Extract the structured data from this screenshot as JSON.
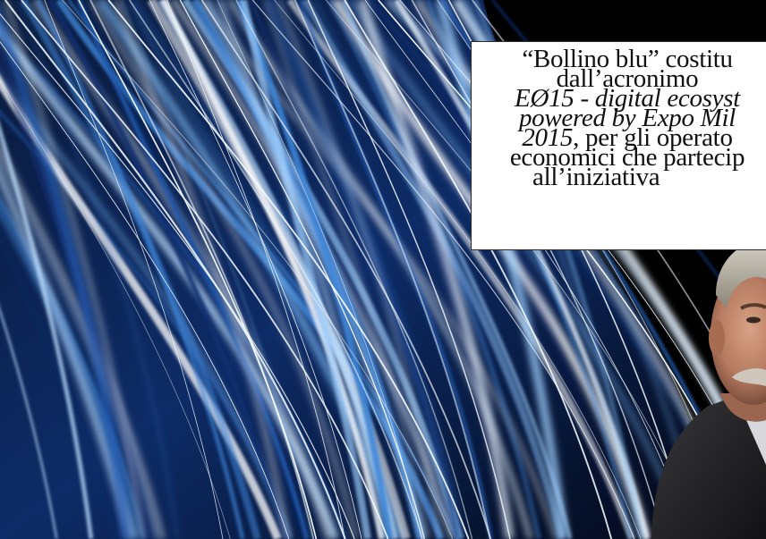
{
  "caption": {
    "line1": "“Bollino blu” costitu",
    "line2": "dall’acronimo",
    "line3": "EØ15 - digital ecosyst",
    "line4": "powered by Expo Mil",
    "line5_italic": "2015",
    "line5_rest": ", per gli operato",
    "line6": "economici che partecip",
    "line7": "all’iniziativa"
  },
  "colors": {
    "background": "#000000",
    "streak_light": "#cfe6ff",
    "streak_mid": "#3a7fd0",
    "streak_dark": "#0b1d4a"
  }
}
